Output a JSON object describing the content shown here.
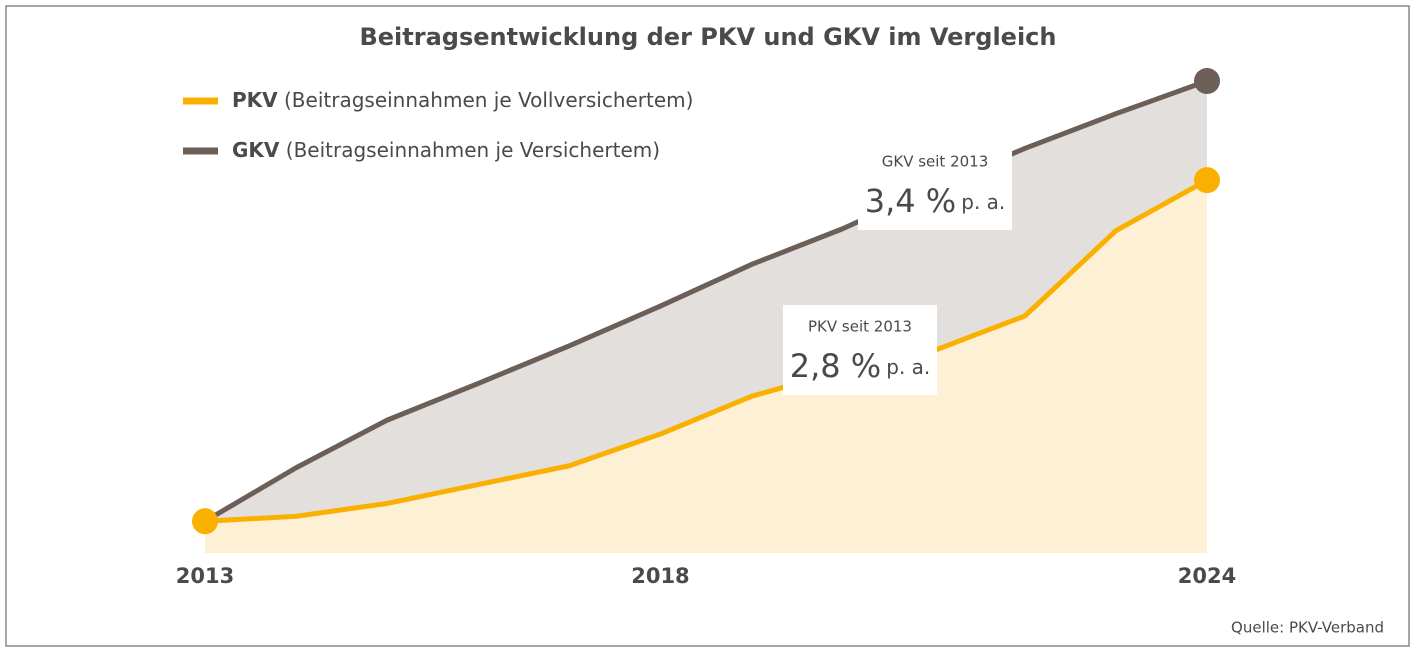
{
  "chart_data": {
    "type": "area",
    "title": "Beitragsentwicklung der PKV und GKV im Vergleich",
    "categories": [
      "2013",
      null,
      null,
      null,
      null,
      "2018",
      null,
      null,
      null,
      null,
      null,
      "2024"
    ],
    "series": [
      {
        "name": "PKV",
        "description": "(Beitragseinnahmen je Vollversichertem)",
        "color": "#f9b000",
        "fill": "#fdf0d5",
        "values": [
          100,
          100.5,
          101.8,
          103.7,
          105.6,
          108.8,
          112.6,
          115.2,
          117.2,
          120.7,
          129.3,
          134.4
        ]
      },
      {
        "name": "GKV",
        "description": "(Beitragseinnahmen je Versichertem)",
        "color": "#6b5f58",
        "fill": "#e3dfdc",
        "values": [
          100,
          105.4,
          110.2,
          113.9,
          117.7,
          121.7,
          125.9,
          129.5,
          133.7,
          137.6,
          141.1,
          144.4
        ]
      }
    ],
    "ylim": [
      96.8,
      144.4
    ],
    "annotations": [
      {
        "heading": "GKV seit 2013",
        "value": "3,4 %",
        "unit": "p. a."
      },
      {
        "heading": "PKV seit 2013",
        "value": "2,8 %",
        "unit": "p. a."
      }
    ],
    "source": "Quelle: PKV-Verband"
  }
}
